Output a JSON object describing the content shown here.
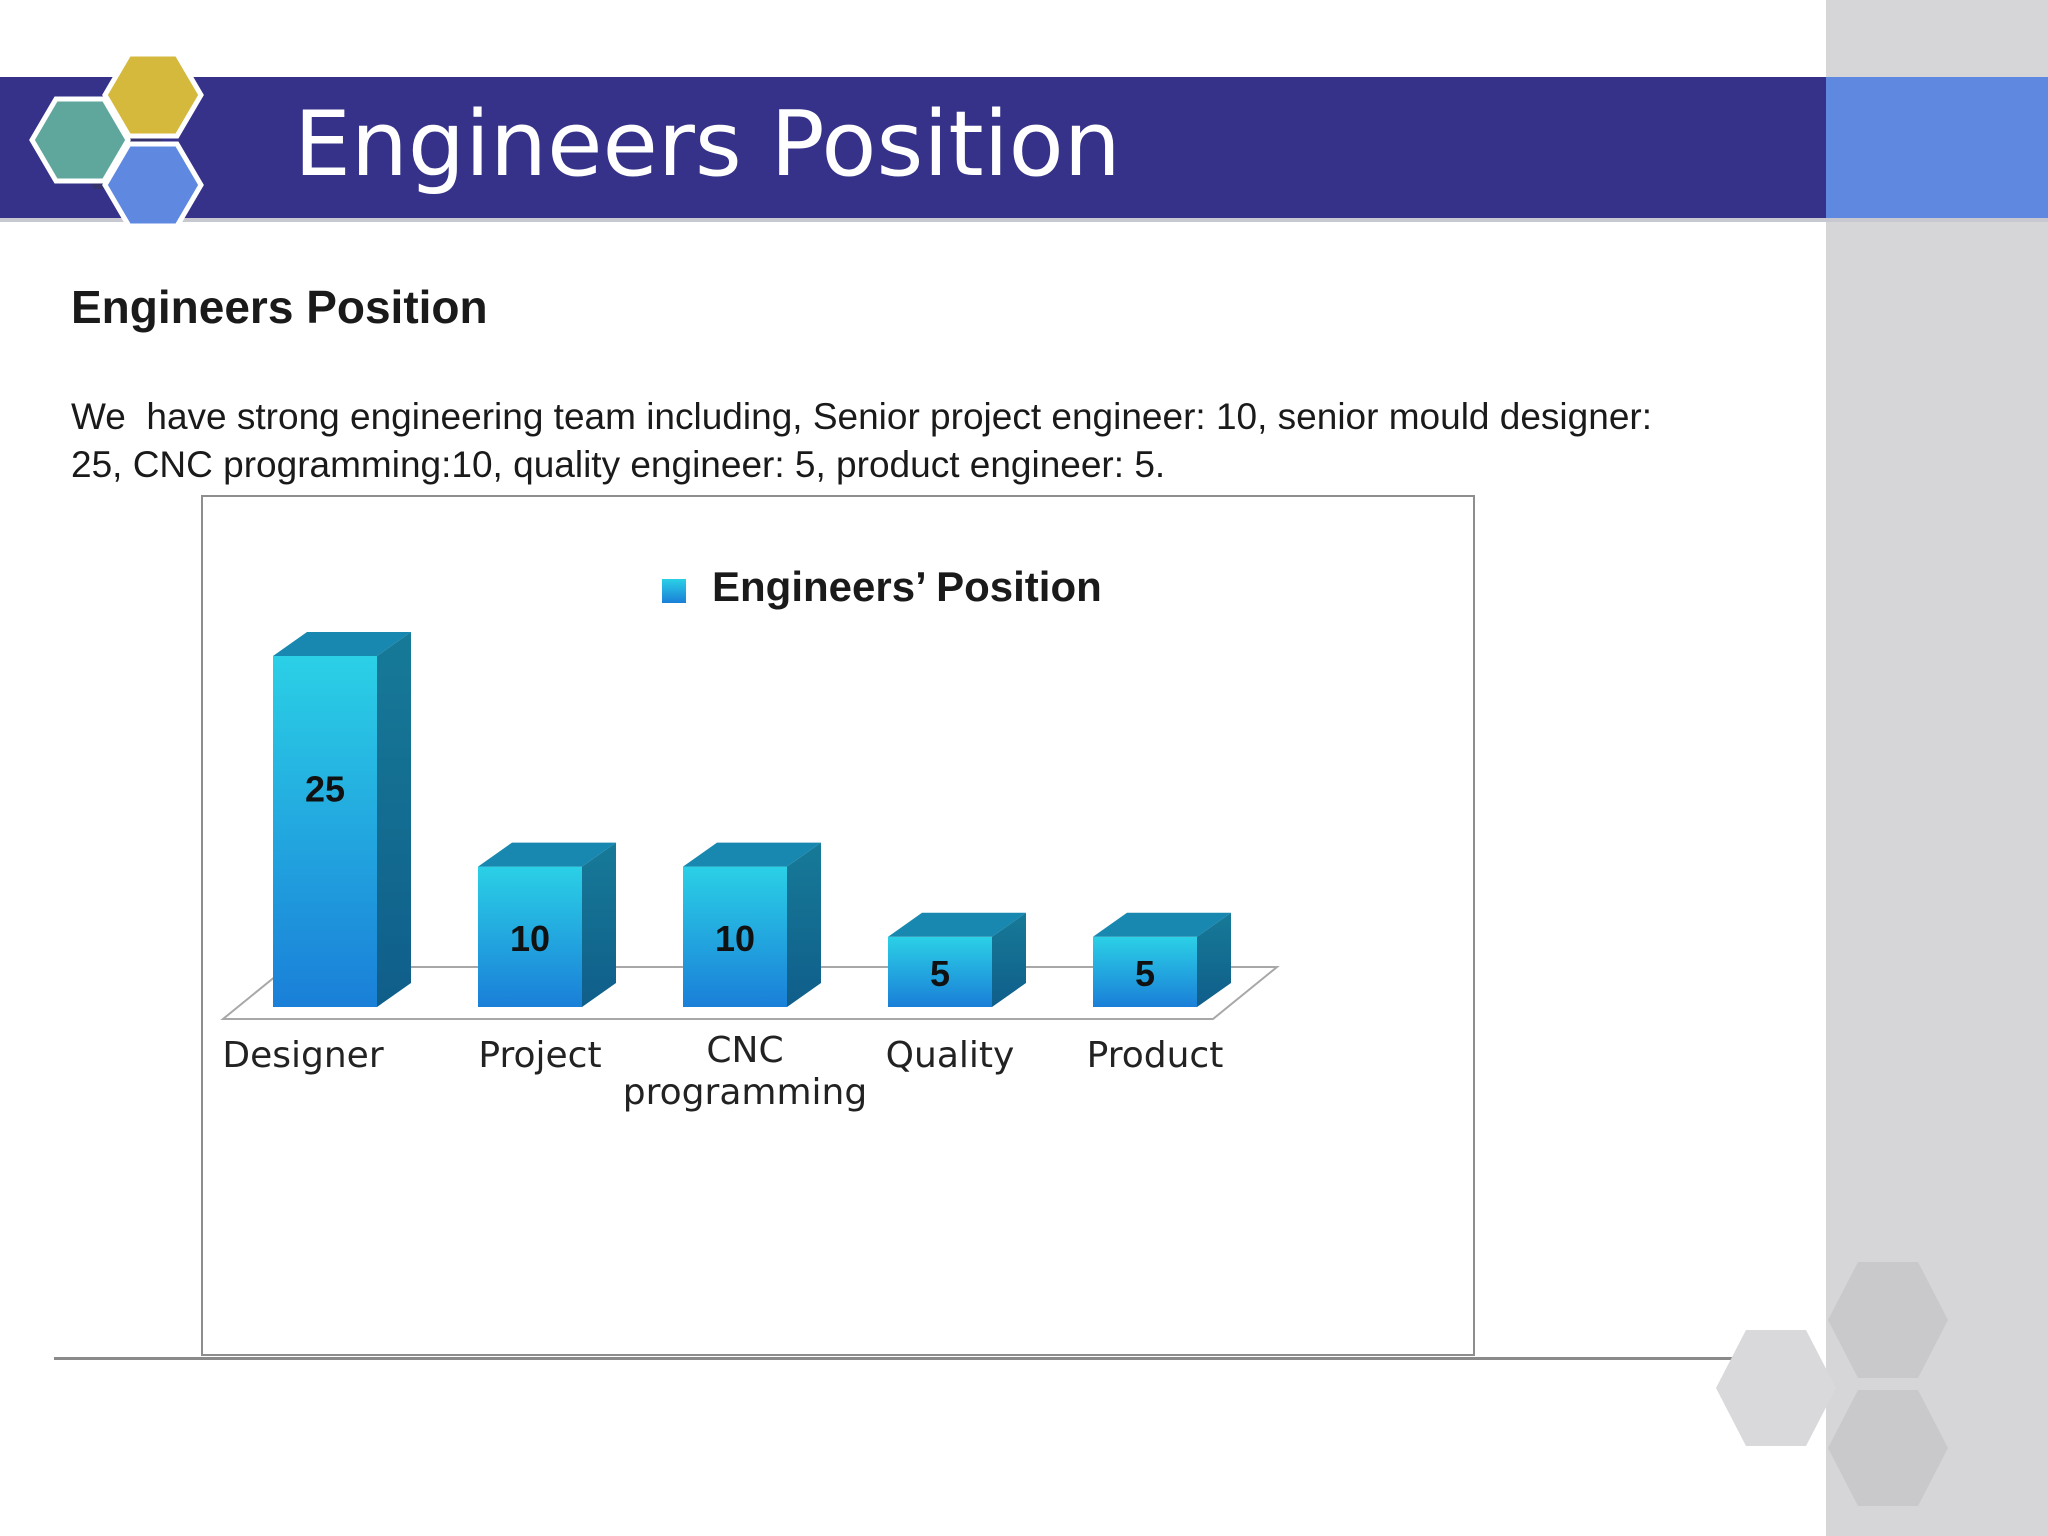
{
  "slide": {
    "title": "Engineers Position",
    "heading": "Engineers Position",
    "body": "We  have strong engineering team including, Senior project engineer: 10, senior mould designer: 25, CNC programming:10, quality engineer: 5, product engineer: 5."
  },
  "colors": {
    "title_band": "#36328a",
    "title_accent": "#5f89e0",
    "bar": "#1aa0dc",
    "hex_teal": "#5fa79c",
    "hex_gold": "#d4b93c",
    "hex_blue": "#5f89e0"
  },
  "chart_data": {
    "type": "bar",
    "style": "3d",
    "legend_position": "top",
    "categories": [
      "Designer",
      "Project",
      "CNC programming",
      "Quality",
      "Product"
    ],
    "series": [
      {
        "name": "Engineers’ Position",
        "values": [
          25,
          10,
          10,
          5,
          5
        ]
      }
    ],
    "data_labels": [
      "25",
      "10",
      "10",
      "5",
      "5"
    ],
    "show_value_axis": false,
    "grid": false,
    "ylim": [
      0,
      25
    ]
  }
}
